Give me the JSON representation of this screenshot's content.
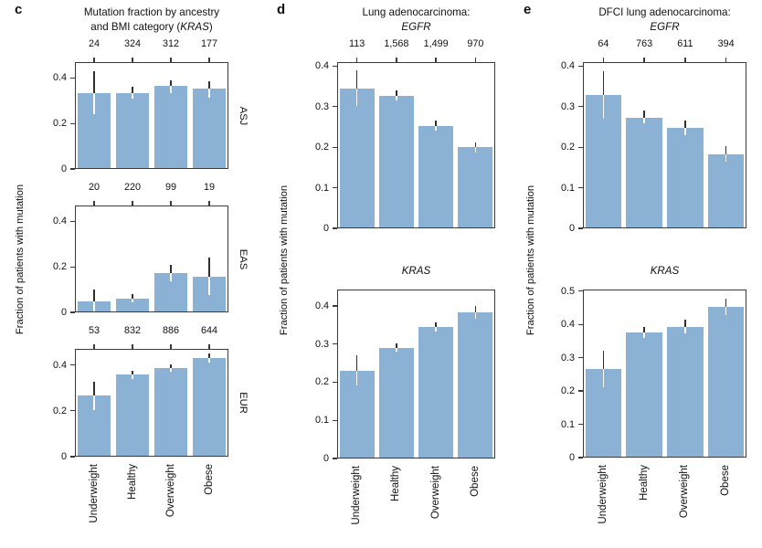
{
  "ylabel": "Fraction of patients with mutation",
  "categories": [
    "Underweight",
    "Healthy",
    "Overweight",
    "Obese"
  ],
  "colors": {
    "bar": "#8bb2d4",
    "axis": "#3a3a3a",
    "error_dark": "#303030",
    "error_light": "#fafafa",
    "text": "#111111"
  },
  "panels": [
    {
      "letter": "c"
    },
    {
      "letter": "d"
    },
    {
      "letter": "e"
    }
  ],
  "chart_data": [
    {
      "id": "c-asj",
      "panel": "c",
      "type": "bar",
      "title_lines": [
        [
          {
            "text": "Mutation fraction by ancestry",
            "italic": false
          }
        ],
        [
          {
            "text": "and BMI category (",
            "italic": false
          },
          {
            "text": "KRAS",
            "italic": true
          },
          {
            "text": ")",
            "italic": false
          }
        ]
      ],
      "counts": [
        "24",
        "324",
        "312",
        "177"
      ],
      "side_label": "ASJ",
      "categories": [
        "Underweight",
        "Healthy",
        "Overweight",
        "Obese"
      ],
      "values": [
        0.335,
        0.335,
        0.365,
        0.352
      ],
      "err_lo": [
        0.24,
        0.31,
        0.335,
        0.315
      ],
      "err_hi": [
        0.43,
        0.36,
        0.39,
        0.385
      ],
      "ylim": [
        0,
        0.47
      ],
      "yticks": [
        0,
        0.2,
        0.4
      ],
      "show_xcats": false
    },
    {
      "id": "c-eas",
      "panel": "c",
      "type": "bar",
      "title_lines": [],
      "counts": [
        "20",
        "220",
        "99",
        "19"
      ],
      "side_label": "EAS",
      "categories": [
        "Underweight",
        "Healthy",
        "Overweight",
        "Obese"
      ],
      "values": [
        0.05,
        0.06,
        0.173,
        0.157
      ],
      "err_lo": [
        0.005,
        0.045,
        0.135,
        0.075
      ],
      "err_hi": [
        0.1,
        0.08,
        0.21,
        0.24
      ],
      "ylim": [
        0,
        0.47
      ],
      "yticks": [
        0,
        0.2,
        0.4
      ],
      "show_xcats": false
    },
    {
      "id": "c-eur",
      "panel": "c",
      "type": "bar",
      "title_lines": [],
      "counts": [
        "53",
        "832",
        "886",
        "644"
      ],
      "side_label": "EUR",
      "categories": [
        "Underweight",
        "Healthy",
        "Overweight",
        "Obese"
      ],
      "values": [
        0.265,
        0.357,
        0.386,
        0.43
      ],
      "err_lo": [
        0.205,
        0.34,
        0.37,
        0.41
      ],
      "err_hi": [
        0.325,
        0.375,
        0.401,
        0.452
      ],
      "ylim": [
        0,
        0.47
      ],
      "yticks": [
        0,
        0.2,
        0.4
      ],
      "show_xcats": true
    },
    {
      "id": "d-egfr",
      "panel": "d",
      "type": "bar",
      "title_lines": [
        [
          {
            "text": "Lung adenocarcinoma:",
            "italic": false
          }
        ],
        [
          {
            "text": "EGFR",
            "italic": true
          }
        ]
      ],
      "counts": [
        "113",
        "1,568",
        "1,499",
        "970"
      ],
      "side_label": null,
      "categories": [
        "Underweight",
        "Healthy",
        "Overweight",
        "Obese"
      ],
      "values": [
        0.345,
        0.327,
        0.253,
        0.2
      ],
      "err_lo": [
        0.302,
        0.315,
        0.242,
        0.188
      ],
      "err_hi": [
        0.39,
        0.34,
        0.265,
        0.212
      ],
      "ylim": [
        0,
        0.41
      ],
      "yticks": [
        0,
        0.1,
        0.2,
        0.3,
        0.4
      ],
      "show_xcats": false
    },
    {
      "id": "d-kras",
      "panel": "d",
      "type": "bar",
      "title_lines": [
        [
          {
            "text": "KRAS",
            "italic": true
          }
        ]
      ],
      "counts": null,
      "side_label": null,
      "categories": [
        "Underweight",
        "Healthy",
        "Overweight",
        "Obese"
      ],
      "values": [
        0.23,
        0.29,
        0.345,
        0.383
      ],
      "err_lo": [
        0.192,
        0.279,
        0.334,
        0.367
      ],
      "err_hi": [
        0.27,
        0.302,
        0.357,
        0.4
      ],
      "ylim": [
        0,
        0.443
      ],
      "yticks": [
        0,
        0.1,
        0.2,
        0.3,
        0.4
      ],
      "show_xcats": true
    },
    {
      "id": "e-egfr",
      "panel": "e",
      "type": "bar",
      "title_lines": [
        [
          {
            "text": "DFCI lung adenocarcinoma:",
            "italic": false
          }
        ],
        [
          {
            "text": "EGFR",
            "italic": true
          }
        ]
      ],
      "counts": [
        "64",
        "763",
        "611",
        "394"
      ],
      "side_label": null,
      "categories": [
        "Underweight",
        "Healthy",
        "Overweight",
        "Obese"
      ],
      "values": [
        0.33,
        0.273,
        0.248,
        0.183
      ],
      "err_lo": [
        0.27,
        0.258,
        0.23,
        0.165
      ],
      "err_hi": [
        0.388,
        0.29,
        0.266,
        0.203
      ],
      "ylim": [
        0,
        0.41
      ],
      "yticks": [
        0,
        0.1,
        0.2,
        0.3,
        0.4
      ],
      "show_xcats": false
    },
    {
      "id": "e-kras",
      "panel": "e",
      "type": "bar",
      "title_lines": [
        [
          {
            "text": "KRAS",
            "italic": true
          }
        ]
      ],
      "counts": null,
      "side_label": null,
      "categories": [
        "Underweight",
        "Healthy",
        "Overweight",
        "Obese"
      ],
      "values": [
        0.265,
        0.375,
        0.393,
        0.452
      ],
      "err_lo": [
        0.212,
        0.36,
        0.373,
        0.428
      ],
      "err_hi": [
        0.32,
        0.393,
        0.415,
        0.478
      ],
      "ylim": [
        0,
        0.505
      ],
      "yticks": [
        0,
        0.1,
        0.2,
        0.3,
        0.4,
        0.5
      ],
      "show_xcats": true
    }
  ]
}
